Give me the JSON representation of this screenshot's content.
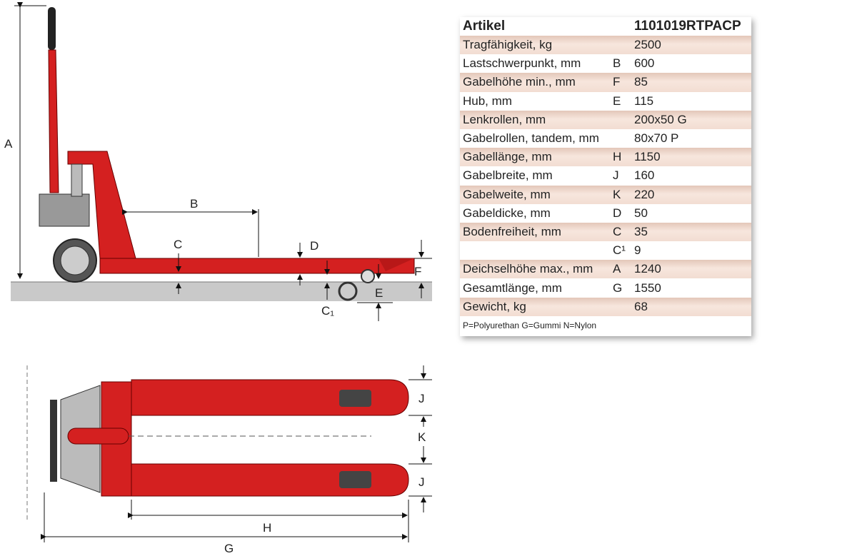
{
  "labels": {
    "A": "A",
    "B": "B",
    "C": "C",
    "D": "D",
    "E": "E",
    "F": "F",
    "C1": "C₁",
    "G": "G",
    "H": "H",
    "J1": "J",
    "J2": "J",
    "K": "K"
  },
  "table": {
    "header": {
      "label": "Artikel",
      "value": "1101019RTPACP"
    },
    "rows": [
      {
        "label": "Tragfähigkeit, kg",
        "code": "",
        "value": "2500"
      },
      {
        "label": "Lastschwerpunkt, mm",
        "code": "B",
        "value": "600"
      },
      {
        "label": "Gabelhöhe min., mm",
        "code": "F",
        "value": "85"
      },
      {
        "label": "Hub, mm",
        "code": "E",
        "value": "115"
      },
      {
        "label": "Lenkrollen, mm",
        "code": "",
        "value": "200x50 G"
      },
      {
        "label": "Gabelrollen, tandem, mm",
        "code": "",
        "value": "80x70 P"
      },
      {
        "label": "Gabellänge, mm",
        "code": "H",
        "value": "1150"
      },
      {
        "label": "Gabelbreite, mm",
        "code": "J",
        "value": "160"
      },
      {
        "label": "Gabelweite, mm",
        "code": "K",
        "value": "220"
      },
      {
        "label": "Gabeldicke, mm",
        "code": "D",
        "value": "50"
      },
      {
        "label": "Bodenfreiheit, mm",
        "code": "C",
        "value": "35"
      },
      {
        "label": "",
        "code": "C¹",
        "value": "9"
      },
      {
        "label": "Deichselhöhe max., mm",
        "code": "A",
        "value": "1240"
      },
      {
        "label": "Gesamtlänge, mm",
        "code": "G",
        "value": "1550"
      },
      {
        "label": "Gewicht, kg",
        "code": "",
        "value": "68"
      }
    ],
    "footnote": "P=Polyurethan G=Gummi N=Nylon"
  },
  "colors": {
    "red": "#d42020",
    "ground": "#c9c9c9"
  }
}
